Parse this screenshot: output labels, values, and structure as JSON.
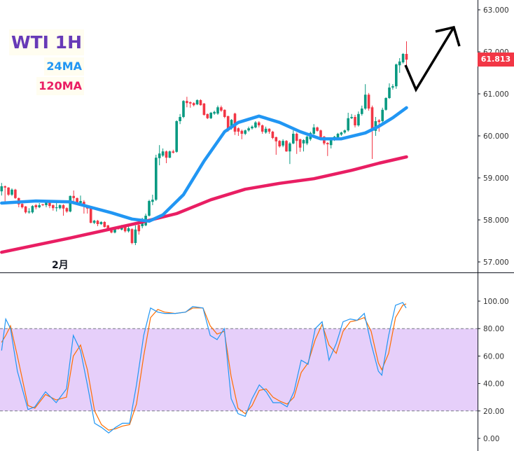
{
  "legend": {
    "title": "WTI 1H",
    "ma24": "24MA",
    "ma120": "120MA"
  },
  "colors": {
    "up": "#089981",
    "down": "#f23645",
    "ma24": "#2196f3",
    "ma120": "#e91e63",
    "stoch_k": "#2196f3",
    "stoch_d": "#ff6d00",
    "stoch_band": "#e6cffa",
    "title": "#673ab7"
  },
  "last_price": "61.813",
  "x_axis_label": "2月",
  "chart_data": [
    {
      "type": "candlestick",
      "price_axis": {
        "ylim": [
          56.6,
          63.2
        ],
        "ticks": [
          "63.000",
          "62.000",
          "61.000",
          "60.000",
          "59.000",
          "58.000",
          "57.000"
        ],
        "tick_values": [
          63,
          62,
          61,
          60,
          59,
          58,
          57
        ],
        "position": "right"
      },
      "candles_ohlc": [
        [
          58.68,
          58.88,
          58.58,
          58.8
        ],
        [
          58.8,
          58.82,
          58.43,
          58.77
        ],
        [
          58.77,
          58.78,
          58.57,
          58.6
        ],
        [
          58.6,
          58.75,
          58.57,
          58.72
        ],
        [
          58.72,
          58.74,
          58.5,
          58.52
        ],
        [
          58.52,
          58.53,
          58.3,
          58.37
        ],
        [
          58.38,
          58.4,
          58.27,
          58.3
        ],
        [
          58.32,
          58.33,
          58.15,
          58.18
        ],
        [
          58.18,
          58.28,
          58.15,
          58.2
        ],
        [
          58.18,
          58.35,
          58.15,
          58.33
        ],
        [
          58.35,
          58.38,
          58.25,
          58.3
        ],
        [
          58.3,
          58.4,
          58.28,
          58.35
        ],
        [
          58.37,
          58.38,
          58.33,
          58.35
        ],
        [
          58.35,
          58.45,
          58.3,
          58.42
        ],
        [
          58.42,
          58.45,
          58.28,
          58.33
        ],
        [
          58.35,
          58.37,
          58.22,
          58.28
        ],
        [
          58.28,
          58.43,
          58.2,
          58.3
        ],
        [
          58.28,
          58.37,
          58.25,
          58.35
        ],
        [
          58.35,
          58.37,
          58.1,
          58.27
        ],
        [
          58.28,
          58.3,
          58.17,
          58.2
        ],
        [
          58.2,
          58.58,
          58.18,
          58.57
        ],
        [
          58.57,
          58.7,
          58.43,
          58.52
        ],
        [
          58.52,
          58.53,
          58.37,
          58.4
        ],
        [
          58.4,
          58.58,
          58.38,
          58.45
        ],
        [
          58.43,
          58.47,
          58.15,
          58.33
        ],
        [
          58.33,
          58.35,
          58.15,
          58.27
        ],
        [
          58.28,
          58.3,
          57.92,
          57.93
        ],
        [
          57.93,
          58.0,
          57.9,
          57.98
        ],
        [
          57.98,
          58.0,
          57.85,
          57.9
        ],
        [
          57.9,
          57.97,
          57.88,
          57.95
        ],
        [
          57.95,
          57.97,
          57.82,
          57.83
        ],
        [
          57.87,
          57.88,
          57.75,
          57.77
        ],
        [
          57.78,
          57.8,
          57.68,
          57.7
        ],
        [
          57.7,
          57.83,
          57.68,
          57.82
        ],
        [
          57.82,
          57.85,
          57.77,
          57.78
        ],
        [
          57.77,
          57.88,
          57.75,
          57.85
        ],
        [
          57.85,
          57.87,
          57.7,
          57.73
        ],
        [
          57.73,
          57.85,
          57.7,
          57.8
        ],
        [
          57.78,
          57.8,
          57.42,
          57.45
        ],
        [
          57.45,
          57.87,
          57.4,
          57.77
        ],
        [
          57.88,
          57.9,
          57.65,
          57.73
        ],
        [
          57.85,
          58.05,
          57.8,
          58.02
        ],
        [
          57.87,
          58.15,
          57.85,
          58.1
        ],
        [
          58.1,
          58.48,
          58.08,
          58.45
        ],
        [
          58.43,
          58.6,
          58.35,
          58.48
        ],
        [
          58.48,
          59.55,
          58.45,
          59.48
        ],
        [
          59.47,
          59.78,
          59.3,
          59.58
        ],
        [
          59.53,
          59.7,
          59.5,
          59.63
        ],
        [
          59.63,
          59.65,
          59.35,
          59.48
        ],
        [
          59.48,
          59.65,
          59.47,
          59.63
        ],
        [
          59.63,
          59.67,
          59.58,
          59.6
        ],
        [
          59.62,
          60.37,
          59.6,
          60.35
        ],
        [
          60.35,
          60.52,
          60.28,
          60.45
        ],
        [
          60.45,
          60.85,
          60.42,
          60.83
        ],
        [
          60.83,
          60.93,
          60.68,
          60.78
        ],
        [
          60.8,
          60.82,
          60.67,
          60.77
        ],
        [
          60.78,
          60.8,
          60.7,
          60.73
        ],
        [
          60.75,
          60.87,
          60.73,
          60.85
        ],
        [
          60.85,
          60.87,
          60.72,
          60.73
        ],
        [
          60.77,
          60.78,
          60.48,
          60.5
        ],
        [
          60.52,
          60.53,
          60.4,
          60.42
        ],
        [
          60.42,
          60.57,
          60.4,
          60.55
        ],
        [
          60.53,
          60.6,
          60.5,
          60.57
        ],
        [
          60.53,
          60.72,
          60.5,
          60.68
        ],
        [
          60.68,
          60.72,
          60.57,
          60.6
        ],
        [
          60.62,
          60.63,
          60.42,
          60.45
        ],
        [
          60.47,
          60.48,
          60.1,
          60.15
        ],
        [
          60.18,
          60.4,
          60.15,
          60.38
        ],
        [
          60.53,
          60.55,
          60.02,
          60.1
        ],
        [
          60.18,
          60.2,
          60.0,
          60.1
        ],
        [
          60.12,
          60.15,
          59.92,
          60.05
        ],
        [
          60.05,
          60.15,
          60.02,
          60.13
        ],
        [
          60.13,
          60.22,
          60.1,
          60.18
        ],
        [
          60.18,
          60.25,
          60.15,
          60.22
        ],
        [
          60.2,
          60.35,
          60.18,
          60.32
        ],
        [
          60.32,
          60.35,
          60.2,
          60.25
        ],
        [
          60.25,
          60.27,
          60.05,
          60.1
        ],
        [
          60.08,
          60.22,
          60.05,
          60.17
        ],
        [
          60.17,
          60.18,
          60.05,
          60.1
        ],
        [
          60.1,
          60.12,
          59.92,
          59.95
        ],
        [
          59.97,
          59.98,
          59.55,
          59.87
        ],
        [
          59.88,
          59.9,
          59.72,
          59.75
        ],
        [
          59.77,
          59.92,
          59.73,
          59.88
        ],
        [
          59.88,
          59.9,
          59.62,
          59.63
        ],
        [
          59.63,
          59.85,
          59.33,
          59.82
        ],
        [
          59.82,
          60.13,
          59.8,
          60.05
        ],
        [
          60.05,
          60.08,
          59.57,
          59.88
        ],
        [
          59.92,
          59.93,
          59.62,
          59.72
        ],
        [
          59.82,
          59.92,
          59.63,
          59.9
        ],
        [
          59.82,
          60.0,
          59.78,
          59.98
        ],
        [
          59.92,
          60.1,
          59.88,
          60.07
        ],
        [
          60.05,
          60.28,
          60.0,
          60.2
        ],
        [
          60.2,
          60.22,
          60.1,
          60.12
        ],
        [
          60.13,
          60.15,
          59.9,
          59.97
        ],
        [
          59.98,
          60.0,
          59.78,
          59.82
        ],
        [
          59.83,
          59.85,
          59.52,
          59.8
        ],
        [
          59.78,
          59.92,
          59.7,
          59.9
        ],
        [
          59.9,
          60.0,
          59.88,
          59.98
        ],
        [
          59.95,
          60.07,
          59.93,
          60.05
        ],
        [
          60.03,
          60.1,
          60.0,
          60.08
        ],
        [
          60.08,
          60.15,
          60.05,
          60.13
        ],
        [
          60.13,
          60.55,
          60.1,
          60.42
        ],
        [
          60.42,
          60.52,
          60.4,
          60.45
        ],
        [
          60.45,
          60.5,
          60.2,
          60.25
        ],
        [
          60.25,
          60.58,
          60.22,
          60.52
        ],
        [
          60.52,
          60.72,
          60.48,
          60.65
        ],
        [
          60.65,
          61.23,
          60.62,
          60.98
        ],
        [
          60.98,
          61.02,
          60.6,
          60.65
        ],
        [
          60.68,
          60.72,
          59.45,
          60.12
        ],
        [
          60.12,
          60.45,
          60.0,
          60.35
        ],
        [
          60.37,
          60.4,
          60.1,
          60.33
        ],
        [
          60.35,
          60.67,
          60.32,
          60.62
        ],
        [
          60.62,
          60.92,
          60.6,
          60.9
        ],
        [
          60.9,
          61.25,
          60.88,
          61.15
        ],
        [
          61.15,
          61.23,
          61.1,
          61.18
        ],
        [
          61.18,
          61.72,
          61.12,
          61.7
        ],
        [
          61.68,
          61.85,
          61.5,
          61.77
        ],
        [
          61.75,
          61.97,
          61.72,
          61.95
        ],
        [
          61.95,
          62.25,
          61.68,
          61.813
        ]
      ],
      "ma24_points": [
        [
          0,
          58.4
        ],
        [
          10,
          58.45
        ],
        [
          20,
          58.43
        ],
        [
          26,
          58.3
        ],
        [
          32,
          58.17
        ],
        [
          38,
          58.02
        ],
        [
          43,
          57.97
        ],
        [
          47,
          58.12
        ],
        [
          53,
          58.6
        ],
        [
          59,
          59.4
        ],
        [
          65,
          60.1
        ],
        [
          69,
          60.32
        ],
        [
          75,
          60.47
        ],
        [
          81,
          60.32
        ],
        [
          87,
          60.1
        ],
        [
          93,
          59.93
        ],
        [
          99,
          59.93
        ],
        [
          106,
          60.07
        ],
        [
          110,
          60.23
        ],
        [
          114,
          60.43
        ],
        [
          118,
          60.67
        ]
      ],
      "ma120_points": [
        [
          0,
          57.23
        ],
        [
          20,
          57.57
        ],
        [
          40,
          57.93
        ],
        [
          51,
          58.15
        ],
        [
          61,
          58.48
        ],
        [
          71,
          58.73
        ],
        [
          81,
          58.87
        ],
        [
          91,
          58.98
        ],
        [
          102,
          59.18
        ],
        [
          110,
          59.35
        ],
        [
          118,
          59.5
        ]
      ]
    },
    {
      "type": "line",
      "indicator": "stochastic",
      "ylim": [
        -5,
        110
      ],
      "ticks": [
        "100.00",
        "80.00",
        "60.00",
        "40.00",
        "20.00",
        "0.00"
      ],
      "tick_values": [
        100,
        80,
        60,
        40,
        20,
        0
      ],
      "band": [
        20,
        80
      ],
      "x_index": [
        0,
        1.2,
        2.6,
        4.6,
        7.7,
        9.7,
        12.8,
        15.9,
        18.9,
        20.9,
        23,
        25,
        27.1,
        29.1,
        31.2,
        33.2,
        35.2,
        37.3,
        39.3,
        41.4,
        43.4,
        45.5,
        47.5,
        50.6,
        53.6,
        55.7,
        58.7,
        60.8,
        62.8,
        64.9,
        66.9,
        68.9,
        71,
        73,
        75.1,
        77.1,
        79.1,
        81.2,
        83.2,
        85.2,
        87.3,
        89.3,
        91.4,
        93.4,
        95.4,
        97.5,
        99.5,
        101.6,
        103.6,
        105.7,
        107.7,
        109.8,
        110.8,
        112.8,
        114.8,
        116.9,
        117.9
      ],
      "series": [
        {
          "key": "k",
          "values": [
            64,
            87,
            80,
            49,
            21,
            23,
            34,
            26,
            36,
            75,
            64,
            39,
            11,
            8,
            4,
            8,
            11,
            11,
            39,
            75,
            95,
            92,
            91,
            91,
            92,
            96,
            95,
            75,
            72,
            80,
            29,
            18,
            16,
            29,
            39,
            34,
            26,
            26,
            23,
            34,
            57,
            54,
            80,
            85,
            57,
            69,
            85,
            87,
            86,
            91,
            69,
            49,
            46,
            75,
            97,
            99,
            95
          ]
        },
        {
          "key": "d",
          "values": [
            70,
            75,
            82,
            60,
            24,
            22,
            32,
            28,
            30,
            60,
            68,
            50,
            20,
            10,
            6,
            7,
            9,
            10,
            25,
            60,
            88,
            94,
            92,
            91,
            92,
            95,
            95,
            82,
            76,
            78,
            45,
            22,
            18,
            24,
            35,
            36,
            30,
            27,
            25,
            30,
            48,
            55,
            72,
            83,
            68,
            62,
            78,
            85,
            86,
            88,
            78,
            55,
            50,
            62,
            88,
            97,
            98
          ]
        }
      ]
    }
  ]
}
